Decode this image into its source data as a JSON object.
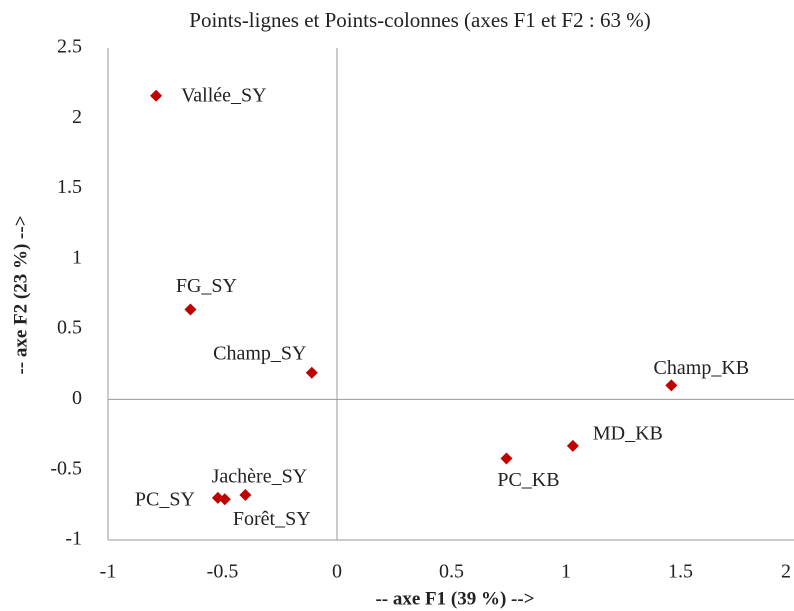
{
  "chart_data": {
    "type": "scatter",
    "title": "Points-lignes et Points-colonnes (axes F1 et F2 : 63 %)",
    "x_label": "-- axe F1 (39 %) -->",
    "y_label": "-- axe F2 (23 %) -->",
    "series": [
      {
        "color": "#c00000",
        "labels": [
          "Vallée_SY",
          "FG_SY",
          "Champ_SY",
          "Champ_KB",
          "MD_KB",
          "PC_KB",
          "Jachère_SY",
          "PC_SY",
          "Forêt_SY"
        ],
        "x": [
          -0.79,
          -0.64,
          -0.11,
          1.46,
          1.03,
          0.74,
          -0.4,
          -0.52,
          -0.49
        ],
        "values": [
          2.16,
          0.64,
          0.19,
          0.1,
          -0.33,
          -0.42,
          -0.68,
          -0.7,
          -0.71
        ]
      }
    ],
    "xlim": [
      -1,
      2
    ],
    "xticks": [
      -1,
      -0.5,
      0,
      0.5,
      1,
      1.5,
      2
    ],
    "ylim": [
      -1,
      2.5
    ],
    "yticks": [
      -1,
      -0.5,
      0,
      0.5,
      1,
      1.5,
      2,
      2.5
    ]
  }
}
